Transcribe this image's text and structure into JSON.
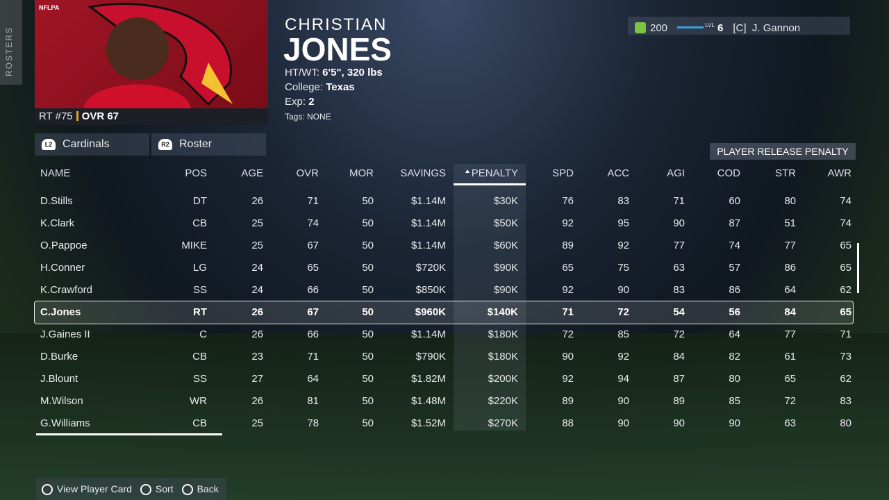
{
  "side_tab": "ROSTERS",
  "badge": "NFLPA",
  "player": {
    "first_name": "CHRISTIAN",
    "last_name": "JONES",
    "number": "RT #75",
    "ovr": "OVR 67",
    "details": [
      {
        "label": "HT/WT:",
        "value": "6'5\", 320 lbs"
      },
      {
        "label": "College:",
        "value": "Texas"
      },
      {
        "label": "Exp:",
        "value": "2"
      }
    ],
    "tags": "Tags: NONE"
  },
  "status": {
    "coins": "200",
    "lvl_label": "LVL",
    "lvl": "6",
    "coach": "[C]  J. Gannon"
  },
  "tabs": [
    {
      "button": "L2",
      "label": "Cardinals"
    },
    {
      "button": "R2",
      "label": "Roster"
    }
  ],
  "panel_title": "PLAYER RELEASE PENALTY",
  "table": {
    "columns": [
      "NAME",
      "POS",
      "AGE",
      "OVR",
      "MOR",
      "SAVINGS",
      "PENALTY",
      "SPD",
      "ACC",
      "AGI",
      "COD",
      "STR",
      "AWR"
    ],
    "sorted_column": 6,
    "selected_row": 5,
    "rows": [
      [
        "D.Stills",
        "DT",
        "26",
        "71",
        "50",
        "$1.14M",
        "$30K",
        "76",
        "83",
        "71",
        "60",
        "80",
        "74"
      ],
      [
        "K.Clark",
        "CB",
        "25",
        "74",
        "50",
        "$1.14M",
        "$50K",
        "92",
        "95",
        "90",
        "87",
        "51",
        "74"
      ],
      [
        "O.Pappoe",
        "MIKE",
        "25",
        "67",
        "50",
        "$1.14M",
        "$60K",
        "89",
        "92",
        "77",
        "74",
        "77",
        "65"
      ],
      [
        "H.Conner",
        "LG",
        "24",
        "65",
        "50",
        "$720K",
        "$90K",
        "65",
        "75",
        "63",
        "57",
        "86",
        "65"
      ],
      [
        "K.Crawford",
        "SS",
        "24",
        "66",
        "50",
        "$850K",
        "$90K",
        "92",
        "90",
        "83",
        "86",
        "64",
        "62"
      ],
      [
        "C.Jones",
        "RT",
        "26",
        "67",
        "50",
        "$960K",
        "$140K",
        "71",
        "72",
        "54",
        "56",
        "84",
        "65"
      ],
      [
        "J.Gaines II",
        "C",
        "26",
        "66",
        "50",
        "$1.14M",
        "$180K",
        "72",
        "85",
        "72",
        "64",
        "77",
        "71"
      ],
      [
        "D.Burke",
        "CB",
        "23",
        "71",
        "50",
        "$790K",
        "$180K",
        "90",
        "92",
        "84",
        "82",
        "61",
        "73"
      ],
      [
        "J.Blount",
        "SS",
        "27",
        "64",
        "50",
        "$1.82M",
        "$200K",
        "92",
        "94",
        "87",
        "80",
        "65",
        "62"
      ],
      [
        "M.Wilson",
        "WR",
        "26",
        "81",
        "50",
        "$1.48M",
        "$220K",
        "89",
        "90",
        "89",
        "85",
        "72",
        "83"
      ],
      [
        "G.Williams",
        "CB",
        "25",
        "78",
        "50",
        "$1.52M",
        "$270K",
        "88",
        "90",
        "90",
        "90",
        "63",
        "80"
      ]
    ]
  },
  "footer": [
    "View Player Card",
    "Sort",
    "Back"
  ]
}
